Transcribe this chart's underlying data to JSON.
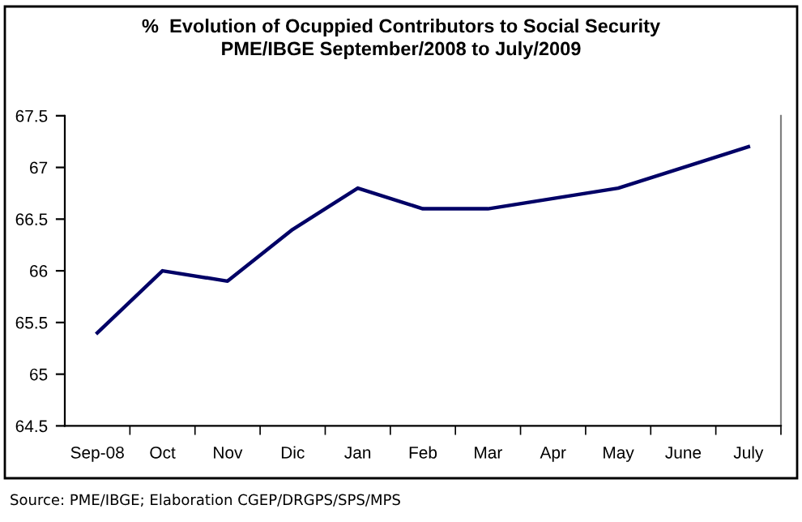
{
  "chart_data": {
    "type": "line",
    "title": "%  Evolution of Ocuppied Contributors to Social Security",
    "subtitle": "PME/IBGE September/2008 to July/2009",
    "categories": [
      "Sep-08",
      "Oct",
      "Nov",
      "Dic",
      "Jan",
      "Feb",
      "Mar",
      "Apr",
      "May",
      "June",
      "July"
    ],
    "series": [
      {
        "color": "#000066",
        "values": [
          65.4,
          66.0,
          65.9,
          66.4,
          66.8,
          66.6,
          66.6,
          66.7,
          66.8,
          67.0,
          67.2
        ]
      }
    ],
    "ylim": [
      64.5,
      67.5
    ],
    "yticks": [
      64.5,
      65,
      65.5,
      66,
      66.5,
      67,
      67.5
    ],
    "grid": false,
    "marker": "none",
    "line_style": "solid",
    "annotations": [
      "Source: PME/IBGE; Elaboration CGEP/DRGPS/SPS/MPS"
    ]
  }
}
